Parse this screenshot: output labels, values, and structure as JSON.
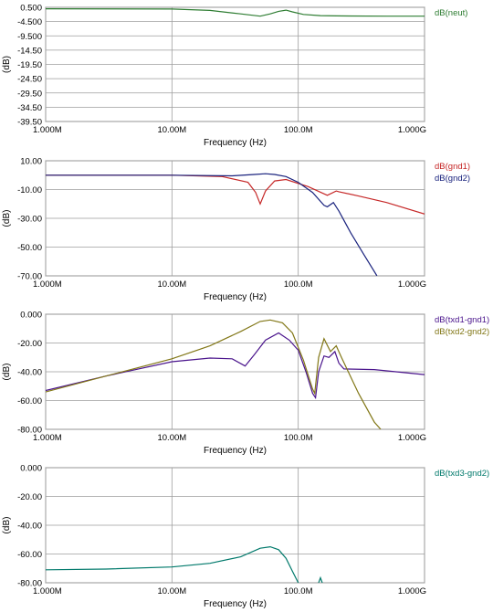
{
  "chart_data": [
    {
      "type": "line",
      "xscale": "log",
      "xlim": [
        1000000,
        1000000000
      ],
      "ylim": [
        -39.5,
        0.5
      ],
      "xlabel": "Frequency (Hz)",
      "ylabel": "(dB)",
      "yticks": [
        "0.500",
        "-4.500",
        "-9.500",
        "-14.50",
        "-19.50",
        "-24.50",
        "-29.50",
        "-34.50",
        "-39.50"
      ],
      "xticks": [
        "1.000M",
        "10.00M",
        "100.0M",
        "1.000G"
      ],
      "grid": true,
      "series": [
        {
          "name": "dB(neut)",
          "color": "#2e7d32",
          "x": [
            1000000,
            10000000,
            20000000,
            35000000,
            50000000,
            60000000,
            70000000,
            80000000,
            90000000,
            110000000,
            150000000,
            200000000,
            500000000,
            1000000000
          ],
          "y": [
            0.0,
            -0.1,
            -0.6,
            -1.8,
            -2.6,
            -1.8,
            -0.9,
            -0.5,
            -1.1,
            -2.0,
            -2.4,
            -2.5,
            -2.6,
            -2.6
          ]
        }
      ]
    },
    {
      "type": "line",
      "xscale": "log",
      "xlim": [
        1000000,
        1000000000
      ],
      "ylim": [
        -70,
        10
      ],
      "xlabel": "Frequency (Hz)",
      "ylabel": "(dB)",
      "yticks": [
        "10.00",
        "-10.00",
        "-30.00",
        "-50.00",
        "-70.00"
      ],
      "xticks": [
        "1.000M",
        "10.00M",
        "100.0M",
        "1.000G"
      ],
      "grid": true,
      "series": [
        {
          "name": "dB(gnd1)",
          "color": "#c62828",
          "x": [
            1000000,
            10000000,
            25000000,
            40000000,
            46000000,
            50000000,
            55000000,
            65000000,
            80000000,
            120000000,
            170000000,
            200000000,
            210000000,
            300000000,
            500000000,
            1000000000
          ],
          "y": [
            0.0,
            0.0,
            -1.0,
            -5.0,
            -12.0,
            -20.0,
            -11.0,
            -4.0,
            -3.0,
            -8.0,
            -14.0,
            -11.0,
            -11.5,
            -14.5,
            -19.0,
            -27.0
          ]
        },
        {
          "name": "dB(gnd2)",
          "color": "#1a237e",
          "x": [
            1000000,
            10000000,
            30000000,
            45000000,
            55000000,
            65000000,
            80000000,
            100000000,
            130000000,
            160000000,
            170000000,
            190000000,
            210000000,
            260000000,
            330000000,
            420000000
          ],
          "y": [
            0.0,
            0.0,
            -0.5,
            0.5,
            1.0,
            0.5,
            -1.0,
            -5.0,
            -12.0,
            -21.0,
            -22.0,
            -19.0,
            -25.0,
            -40.0,
            -55.0,
            -70.0
          ]
        }
      ]
    },
    {
      "type": "line",
      "xscale": "log",
      "xlim": [
        1000000,
        1000000000
      ],
      "ylim": [
        -80,
        0
      ],
      "xlabel": "Frequency (Hz)",
      "ylabel": "(dB)",
      "yticks": [
        "0.000",
        "-20.00",
        "-40.00",
        "-60.00",
        "-80.00"
      ],
      "xticks": [
        "1.000M",
        "10.00M",
        "100.0M",
        "1.000G"
      ],
      "grid": true,
      "series": [
        {
          "name": "dB(txd1-gnd1)",
          "color": "#4a148c",
          "x": [
            1000000,
            3000000,
            10000000,
            20000000,
            30000000,
            38000000,
            45000000,
            55000000,
            70000000,
            85000000,
            100000000,
            115000000,
            130000000,
            137000000,
            145000000,
            160000000,
            175000000,
            195000000,
            210000000,
            230000000,
            400000000,
            1000000000
          ],
          "y": [
            -53.0,
            -43.0,
            -33.0,
            -30.5,
            -31.0,
            -36.0,
            -28.0,
            -18.0,
            -13.0,
            -18.0,
            -25.0,
            -40.0,
            -55.0,
            -58.0,
            -40.0,
            -29.0,
            -30.0,
            -26.0,
            -34.0,
            -38.0,
            -38.5,
            -42.0
          ]
        },
        {
          "name": "dB(txd2-gnd2)",
          "color": "#827717",
          "x": [
            1000000,
            3000000,
            10000000,
            20000000,
            35000000,
            50000000,
            60000000,
            75000000,
            90000000,
            110000000,
            130000000,
            135000000,
            145000000,
            160000000,
            180000000,
            200000000,
            220000000,
            300000000,
            400000000,
            450000000
          ],
          "y": [
            -54.0,
            -43.0,
            -31.0,
            -22.0,
            -12.0,
            -5.0,
            -4.0,
            -6.0,
            -13.0,
            -32.0,
            -52.0,
            -55.0,
            -30.0,
            -17.0,
            -26.0,
            -22.0,
            -30.0,
            -55.0,
            -75.0,
            -80.0
          ]
        }
      ]
    },
    {
      "type": "line",
      "xscale": "log",
      "xlim": [
        1000000,
        1000000000
      ],
      "ylim": [
        -80,
        0
      ],
      "xlabel": "Frequency (Hz)",
      "ylabel": "(dB)",
      "yticks": [
        "0.000",
        "-20.00",
        "-40.00",
        "-60.00",
        "-80.00"
      ],
      "xticks": [
        "1.000M",
        "10.00M",
        "100.0M",
        "1.000G"
      ],
      "grid": true,
      "series": [
        {
          "name": "dB(txd3-gnd2)",
          "color": "#00796b",
          "x": [
            1000000,
            3000000,
            10000000,
            20000000,
            35000000,
            50000000,
            60000000,
            70000000,
            80000000,
            90000000,
            100000000
          ],
          "y": [
            -71.0,
            -70.5,
            -69.0,
            -66.5,
            -62.0,
            -56.0,
            -55.0,
            -57.0,
            -63.0,
            -72.0,
            -80.0
          ]
        },
        {
          "name": "",
          "color": "#00796b",
          "x": [
            145000000,
            150000000,
            155000000
          ],
          "y": [
            -80.0,
            -76.5,
            -80.0
          ]
        }
      ]
    }
  ]
}
